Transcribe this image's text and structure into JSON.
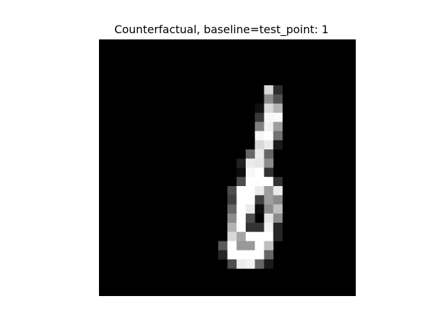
{
  "chart_data": {
    "type": "heatmap",
    "title": "Counterfactual, baseline=test_point: 1",
    "xlabel": "",
    "ylabel": "",
    "colormap": "gray",
    "axes_visible": false,
    "grid": false,
    "legend": "none",
    "rows": 28,
    "cols": 28,
    "value_range": [
      0,
      1
    ],
    "values": [
      [
        0,
        0,
        0,
        0,
        0,
        0,
        0,
        0,
        0,
        0,
        0,
        0,
        0,
        0,
        0,
        0,
        0,
        0,
        0,
        0,
        0,
        0,
        0,
        0,
        0,
        0,
        0,
        0
      ],
      [
        0,
        0,
        0,
        0,
        0,
        0,
        0,
        0,
        0,
        0,
        0,
        0,
        0,
        0,
        0,
        0,
        0,
        0,
        0,
        0,
        0,
        0,
        0,
        0,
        0,
        0,
        0,
        0
      ],
      [
        0,
        0,
        0,
        0,
        0,
        0,
        0,
        0,
        0,
        0,
        0,
        0,
        0,
        0,
        0,
        0,
        0,
        0,
        0,
        0,
        0,
        0,
        0,
        0,
        0,
        0,
        0,
        0
      ],
      [
        0,
        0,
        0,
        0,
        0,
        0,
        0,
        0,
        0,
        0,
        0,
        0,
        0,
        0,
        0,
        0,
        0,
        0,
        0,
        0,
        0,
        0,
        0,
        0,
        0,
        0,
        0,
        0
      ],
      [
        0,
        0,
        0,
        0,
        0,
        0,
        0,
        0,
        0,
        0,
        0,
        0,
        0,
        0,
        0,
        0,
        0,
        0,
        0,
        0,
        0,
        0,
        0,
        0,
        0,
        0,
        0,
        0
      ],
      [
        0,
        0,
        0,
        0,
        0,
        0,
        0,
        0,
        0,
        0,
        0,
        0,
        0,
        0,
        0,
        0,
        0,
        0,
        0.85,
        0.18,
        0,
        0,
        0,
        0,
        0,
        0,
        0,
        0
      ],
      [
        0,
        0,
        0,
        0,
        0,
        0,
        0,
        0,
        0,
        0,
        0,
        0,
        0,
        0,
        0,
        0,
        0,
        0,
        0.55,
        0.32,
        0,
        0,
        0,
        0,
        0,
        0,
        0,
        0
      ],
      [
        0,
        0,
        0,
        0,
        0,
        0,
        0,
        0,
        0,
        0,
        0,
        0,
        0,
        0,
        0,
        0,
        0,
        0.06,
        0.85,
        0.7,
        0,
        0,
        0,
        0,
        0,
        0,
        0,
        0
      ],
      [
        0,
        0,
        0,
        0,
        0,
        0,
        0,
        0,
        0,
        0,
        0,
        0,
        0,
        0,
        0,
        0,
        0,
        0.22,
        0.97,
        0.98,
        0,
        0,
        0,
        0,
        0,
        0,
        0,
        0
      ],
      [
        0,
        0,
        0,
        0,
        0,
        0,
        0,
        0,
        0,
        0,
        0,
        0,
        0,
        0,
        0,
        0,
        0,
        0.5,
        0.95,
        0.62,
        0,
        0,
        0,
        0,
        0,
        0,
        0,
        0
      ],
      [
        0,
        0,
        0,
        0,
        0,
        0,
        0,
        0,
        0,
        0,
        0,
        0,
        0,
        0,
        0,
        0,
        0,
        0.97,
        1,
        0.45,
        0,
        0,
        0,
        0,
        0,
        0,
        0,
        0
      ],
      [
        0,
        0,
        0,
        0,
        0,
        0,
        0,
        0,
        0,
        0,
        0,
        0,
        0,
        0,
        0,
        0,
        0,
        0.85,
        0.92,
        0.1,
        0,
        0,
        0,
        0,
        0,
        0,
        0,
        0
      ],
      [
        0,
        0,
        0,
        0,
        0,
        0,
        0,
        0,
        0,
        0,
        0,
        0,
        0,
        0,
        0,
        0,
        0.4,
        0.92,
        0.4,
        0,
        0,
        0,
        0,
        0,
        0,
        0,
        0,
        0
      ],
      [
        0,
        0,
        0,
        0,
        0,
        0,
        0,
        0,
        0,
        0,
        0,
        0,
        0,
        0,
        0,
        0.12,
        0.92,
        0.9,
        0.55,
        0,
        0,
        0,
        0,
        0,
        0,
        0,
        0,
        0
      ],
      [
        0,
        0,
        0,
        0,
        0,
        0,
        0,
        0,
        0,
        0,
        0,
        0,
        0,
        0,
        0,
        0.05,
        0.97,
        1,
        0.2,
        0,
        0,
        0,
        0,
        0,
        0,
        0,
        0,
        0
      ],
      [
        0,
        0,
        0,
        0,
        0,
        0,
        0,
        0,
        0,
        0,
        0,
        0,
        0,
        0,
        0,
        0.3,
        1,
        1,
        1,
        0.2,
        0,
        0,
        0,
        0,
        0,
        0,
        0,
        0
      ],
      [
        0,
        0,
        0,
        0,
        0,
        0,
        0,
        0,
        0,
        0,
        0,
        0,
        0,
        0,
        0.3,
        1,
        1,
        0.92,
        0.62,
        0.92,
        0,
        0,
        0,
        0,
        0,
        0,
        0,
        0
      ],
      [
        0,
        0,
        0,
        0,
        0,
        0,
        0,
        0,
        0,
        0,
        0,
        0,
        0,
        0,
        0.25,
        1,
        1,
        0.25,
        0.62,
        0.55,
        0,
        0,
        0,
        0,
        0,
        0,
        0,
        0
      ],
      [
        0,
        0,
        0,
        0,
        0,
        0,
        0,
        0,
        0,
        0,
        0,
        0,
        0,
        0,
        0.4,
        1,
        0.92,
        0.05,
        0.55,
        0.75,
        0,
        0,
        0,
        0,
        0,
        0,
        0,
        0
      ],
      [
        0,
        0,
        0,
        0,
        0,
        0,
        0,
        0,
        0,
        0,
        0,
        0,
        0,
        0,
        0.55,
        1,
        0.3,
        0,
        0.9,
        0.55,
        0,
        0,
        0,
        0,
        0,
        0,
        0,
        0
      ],
      [
        0,
        0,
        0,
        0,
        0,
        0,
        0,
        0,
        0,
        0,
        0,
        0,
        0,
        0,
        0.7,
        1,
        0.2,
        0.2,
        0.95,
        0.15,
        0,
        0,
        0,
        0,
        0,
        0,
        0,
        0
      ],
      [
        0,
        0,
        0,
        0,
        0,
        0,
        0,
        0,
        0,
        0,
        0,
        0,
        0,
        0,
        0.85,
        0.65,
        1,
        1,
        1,
        0.15,
        0,
        0,
        0,
        0,
        0,
        0,
        0,
        0
      ],
      [
        0,
        0,
        0,
        0,
        0,
        0,
        0,
        0,
        0,
        0,
        0,
        0,
        0,
        0.35,
        1,
        0.6,
        0.6,
        1,
        0.75,
        0,
        0,
        0,
        0,
        0,
        0,
        0,
        0,
        0
      ],
      [
        0,
        0,
        0,
        0,
        0,
        0,
        0,
        0,
        0,
        0,
        0,
        0,
        0,
        0.15,
        1,
        1,
        1,
        1,
        0.4,
        0,
        0,
        0,
        0,
        0,
        0,
        0,
        0,
        0
      ],
      [
        0,
        0,
        0,
        0,
        0,
        0,
        0,
        0,
        0,
        0,
        0,
        0,
        0,
        0,
        0.3,
        0.92,
        0.95,
        0.4,
        0.1,
        0,
        0,
        0,
        0,
        0,
        0,
        0,
        0,
        0
      ],
      [
        0,
        0,
        0,
        0,
        0,
        0,
        0,
        0,
        0,
        0,
        0,
        0,
        0,
        0,
        0,
        0,
        0,
        0,
        0,
        0,
        0,
        0,
        0,
        0,
        0,
        0,
        0,
        0
      ],
      [
        0,
        0,
        0,
        0,
        0,
        0,
        0,
        0,
        0,
        0,
        0,
        0,
        0,
        0,
        0,
        0,
        0,
        0,
        0,
        0,
        0,
        0,
        0,
        0,
        0,
        0,
        0,
        0
      ],
      [
        0,
        0,
        0,
        0,
        0,
        0,
        0,
        0,
        0,
        0,
        0,
        0,
        0,
        0,
        0,
        0,
        0,
        0,
        0,
        0,
        0,
        0,
        0,
        0,
        0,
        0,
        0,
        0
      ]
    ]
  }
}
